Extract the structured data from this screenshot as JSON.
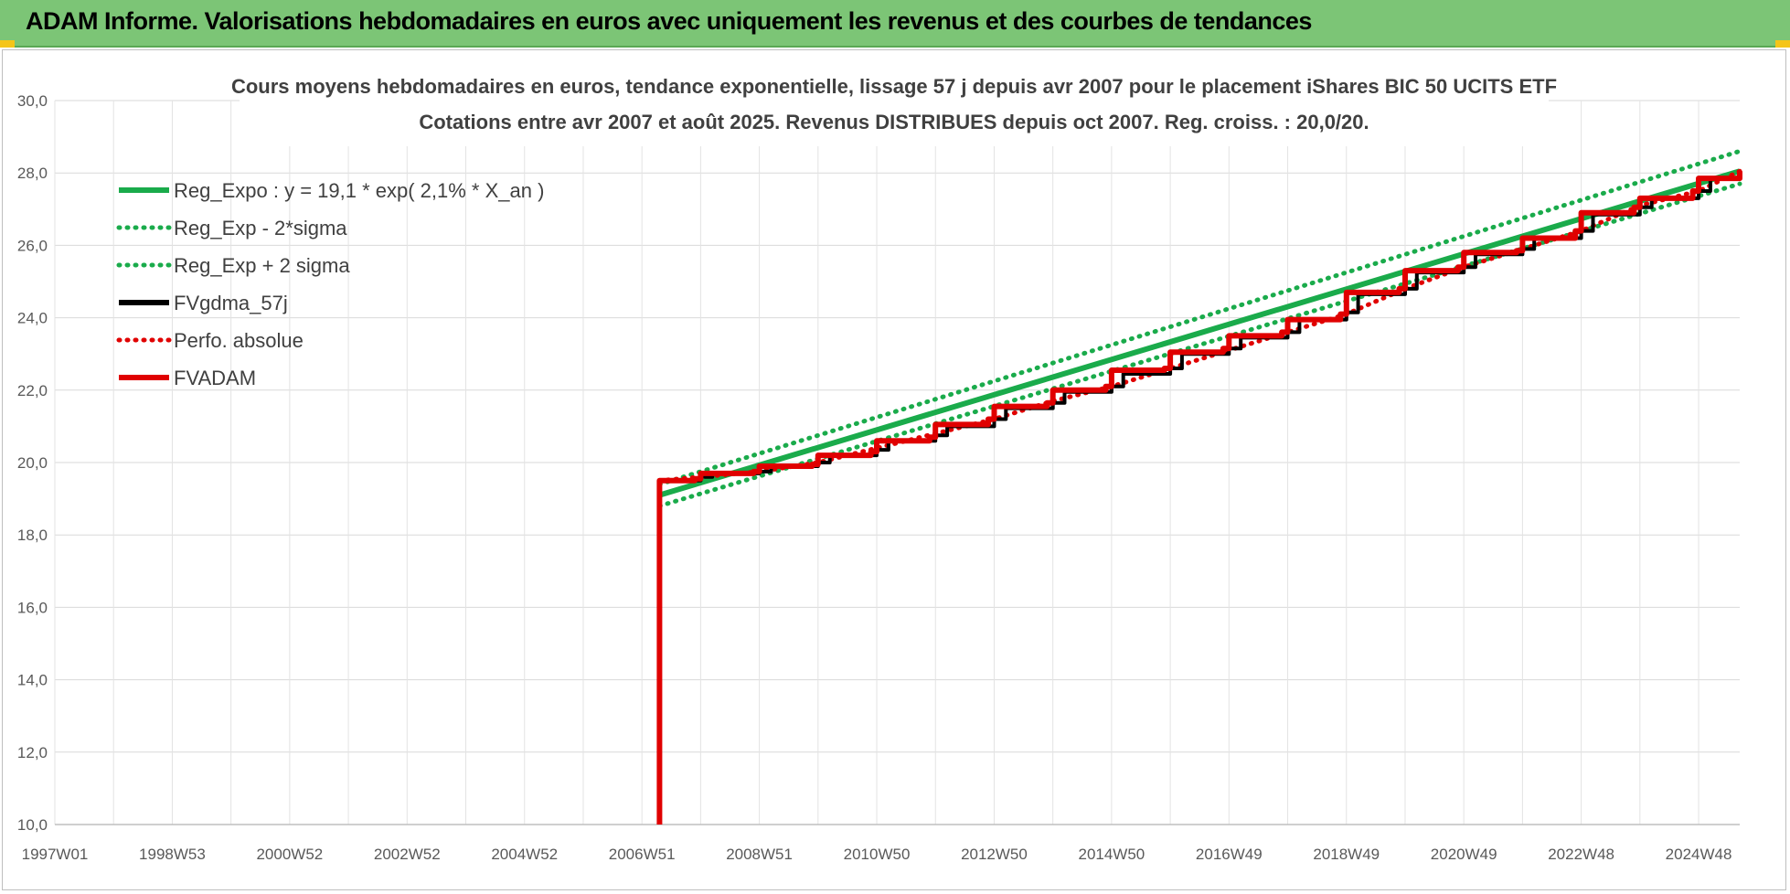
{
  "header": {
    "title": "ADAM Informe. Valorisations hebdomadaires en euros avec uniquement les revenus et des courbes de tendances"
  },
  "chart_data": {
    "type": "line",
    "title": "Cours moyens hebdomadaires en euros, tendance exponentielle, lissage 57 j depuis avr 2007 pour le placement iShares BIC 50 UCITS ETF",
    "subtitle": "Cotations entre avr 2007 et août 2025. Revenus DISTRIBUES depuis oct 2007. Reg. croiss. : 20,0/20.",
    "xlabel": "",
    "ylabel": "",
    "ylim": [
      10,
      30
    ],
    "yticks": [
      "10,0",
      "12,0",
      "14,0",
      "16,0",
      "18,0",
      "20,0",
      "22,0",
      "24,0",
      "26,0",
      "28,0",
      "30,0"
    ],
    "xlim": [
      1997.0,
      2025.7
    ],
    "xticks": [
      {
        "label": "1997W01",
        "value": 1997.0
      },
      {
        "label": "1998W53",
        "value": 1999.0
      },
      {
        "label": "2000W52",
        "value": 2001.0
      },
      {
        "label": "2002W52",
        "value": 2003.0
      },
      {
        "label": "2004W52",
        "value": 2005.0
      },
      {
        "label": "2006W51",
        "value": 2007.0
      },
      {
        "label": "2008W51",
        "value": 2009.0
      },
      {
        "label": "2010W50",
        "value": 2011.0
      },
      {
        "label": "2012W50",
        "value": 2013.0
      },
      {
        "label": "2014W50",
        "value": 2015.0
      },
      {
        "label": "2016W49",
        "value": 2017.0
      },
      {
        "label": "2018W49",
        "value": 2019.0
      },
      {
        "label": "2020W49",
        "value": 2021.0
      },
      {
        "label": "2022W48",
        "value": 2023.0
      },
      {
        "label": "2024W48",
        "value": 2025.0
      }
    ],
    "grid": true,
    "legend_position": "top-left",
    "series": [
      {
        "name": "Reg_Expo : y = 19,1 * exp( 2,1% *  X_an )",
        "color": "#1aab4b",
        "style": "solid",
        "x": [
          2007.3,
          2025.7
        ],
        "y": [
          19.1,
          28.05
        ]
      },
      {
        "name": "Reg_Exp - 2*sigma",
        "color": "#1aab4b",
        "style": "dotted",
        "x": [
          2007.3,
          2025.7
        ],
        "y": [
          18.8,
          27.7
        ]
      },
      {
        "name": "Reg_Exp + 2 sigma",
        "color": "#1aab4b",
        "style": "dotted",
        "x": [
          2007.3,
          2025.7
        ],
        "y": [
          19.4,
          28.6
        ]
      },
      {
        "name": "FVgdma_57j",
        "color": "#000000",
        "style": "solid",
        "x": [
          2007.3,
          2008.0,
          2008.2,
          2009.0,
          2009.2,
          2010.0,
          2010.2,
          2011.0,
          2011.2,
          2012.0,
          2012.2,
          2013.0,
          2013.2,
          2014.0,
          2014.2,
          2015.0,
          2015.2,
          2016.0,
          2016.2,
          2017.0,
          2017.2,
          2018.0,
          2018.2,
          2019.0,
          2019.2,
          2020.0,
          2020.2,
          2021.0,
          2021.2,
          2022.0,
          2022.2,
          2023.0,
          2023.2,
          2024.0,
          2024.2,
          2025.0,
          2025.2,
          2025.7
        ],
        "y": [
          19.5,
          19.6,
          19.7,
          19.75,
          19.9,
          20.0,
          20.2,
          20.35,
          20.6,
          20.75,
          21.0,
          21.2,
          21.5,
          21.65,
          21.95,
          22.1,
          22.45,
          22.6,
          23.0,
          23.15,
          23.45,
          23.6,
          23.95,
          24.15,
          24.65,
          24.8,
          25.25,
          25.4,
          25.75,
          25.9,
          26.2,
          26.4,
          26.85,
          27.05,
          27.3,
          27.5,
          27.85,
          28.0
        ]
      },
      {
        "name": "Perfo. absolue",
        "color": "#e00000",
        "style": "dotted",
        "x": [
          2007.3,
          2008.0,
          2009.0,
          2010.0,
          2011.0,
          2012.0,
          2013.0,
          2014.0,
          2015.0,
          2016.0,
          2017.0,
          2018.0,
          2019.0,
          2020.0,
          2021.0,
          2022.0,
          2023.0,
          2024.0,
          2025.0,
          2025.7
        ],
        "y": [
          19.5,
          19.6,
          19.75,
          20.0,
          20.4,
          20.8,
          21.2,
          21.7,
          22.1,
          22.6,
          23.1,
          23.6,
          24.1,
          24.8,
          25.4,
          25.9,
          26.4,
          27.1,
          27.5,
          28.05
        ]
      },
      {
        "name": "FVADAM",
        "color": "#e00000",
        "style": "solid",
        "x": [
          2007.3,
          2007.3,
          2007.9,
          2008.0,
          2008.9,
          2009.0,
          2009.9,
          2010.0,
          2010.9,
          2011.0,
          2011.9,
          2012.0,
          2012.9,
          2013.0,
          2013.9,
          2014.0,
          2014.9,
          2015.0,
          2015.9,
          2016.0,
          2016.9,
          2017.0,
          2017.9,
          2018.0,
          2018.9,
          2019.0,
          2019.9,
          2020.0,
          2020.9,
          2021.0,
          2021.9,
          2022.0,
          2022.9,
          2023.0,
          2023.9,
          2024.0,
          2024.9,
          2025.0,
          2025.7
        ],
        "y": [
          10.0,
          19.5,
          19.55,
          19.7,
          19.75,
          19.9,
          19.95,
          20.2,
          20.3,
          20.6,
          20.7,
          21.05,
          21.2,
          21.55,
          21.65,
          22.0,
          22.1,
          22.55,
          22.6,
          23.05,
          23.15,
          23.5,
          23.6,
          23.95,
          24.1,
          24.7,
          24.8,
          25.3,
          25.4,
          25.8,
          25.85,
          26.2,
          26.4,
          26.9,
          27.05,
          27.3,
          27.5,
          27.85,
          28.05
        ]
      }
    ]
  }
}
